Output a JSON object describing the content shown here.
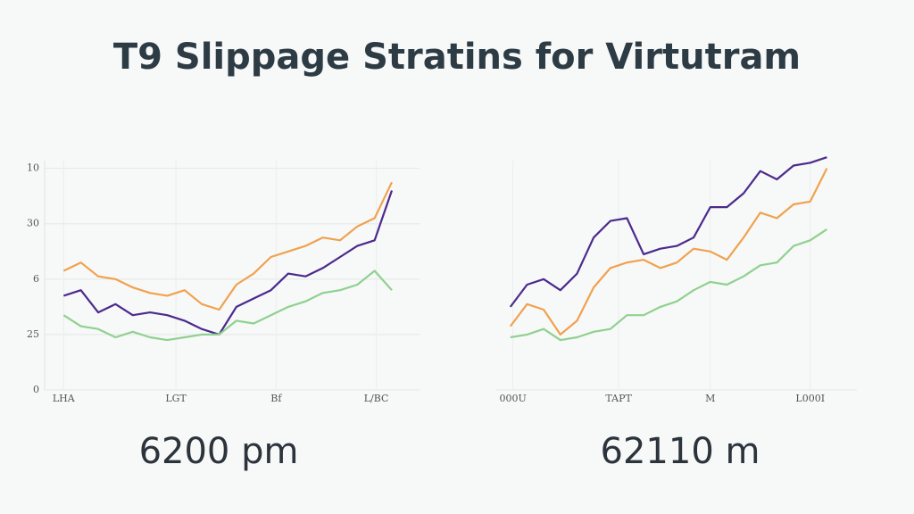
{
  "title": "T9 Slippage Stratins for Virtutram",
  "chart_data": [
    {
      "type": "line",
      "caption": "6200 pm",
      "x": [
        0,
        1,
        2,
        3,
        4,
        5,
        6,
        7,
        8,
        9,
        10,
        11,
        12,
        13,
        14,
        15,
        16,
        17,
        18,
        19
      ],
      "xlim": [
        -1.1,
        20.6
      ],
      "xticks": [
        {
          "value": 0,
          "label": "LHA"
        },
        {
          "value": 6.5,
          "label": "LGT"
        },
        {
          "value": 12.3,
          "label": "Bf"
        },
        {
          "value": 18.1,
          "label": "L/BC"
        }
      ],
      "ylim": [
        0,
        4.3
      ],
      "yticks": [
        {
          "value": 0,
          "label": "0"
        },
        {
          "value": 1,
          "label": "25"
        },
        {
          "value": 2,
          "label": "6"
        },
        {
          "value": 3,
          "label": "30"
        },
        {
          "value": 4,
          "label": "10"
        }
      ],
      "grid": true,
      "series": [
        {
          "color": "#f0a24e",
          "values": [
            2.15,
            2.3,
            2.05,
            2.0,
            1.85,
            1.75,
            1.7,
            1.8,
            1.55,
            1.45,
            1.9,
            2.1,
            2.4,
            2.5,
            2.6,
            2.75,
            2.7,
            2.95,
            3.1,
            3.75
          ]
        },
        {
          "color": "#4b2a8c",
          "values": [
            1.7,
            1.8,
            1.4,
            1.55,
            1.35,
            1.4,
            1.35,
            1.25,
            1.1,
            1.0,
            1.5,
            1.65,
            1.8,
            2.1,
            2.05,
            2.2,
            2.4,
            2.6,
            2.7,
            3.6
          ]
        },
        {
          "color": "#8fd18f",
          "values": [
            1.35,
            1.15,
            1.1,
            0.95,
            1.05,
            0.95,
            0.9,
            0.95,
            1.0,
            1.0,
            1.25,
            1.2,
            1.35,
            1.5,
            1.6,
            1.75,
            1.8,
            1.9,
            2.15,
            1.8
          ]
        }
      ]
    },
    {
      "type": "line",
      "caption": "62110 m",
      "x": [
        0,
        1,
        2,
        3,
        4,
        5,
        6,
        7,
        8,
        9,
        10,
        11,
        12,
        13,
        14,
        15,
        16,
        17,
        18,
        19
      ],
      "xlim": [
        -0.9,
        20.8
      ],
      "xticks": [
        {
          "value": 0.15,
          "label": "000U"
        },
        {
          "value": 6.5,
          "label": "TAPT"
        },
        {
          "value": 12,
          "label": "M"
        },
        {
          "value": 18,
          "label": "L000I"
        }
      ],
      "ylim": [
        0,
        4.3
      ],
      "grid": true,
      "series": [
        {
          "color": "#4b2a8c",
          "values": [
            1.5,
            1.9,
            2.0,
            1.8,
            2.1,
            2.75,
            3.05,
            3.1,
            2.45,
            2.55,
            2.6,
            2.75,
            3.3,
            3.3,
            3.55,
            3.95,
            3.8,
            4.05,
            4.1,
            4.2
          ]
        },
        {
          "color": "#f0a24e",
          "values": [
            1.15,
            1.55,
            1.45,
            1.0,
            1.25,
            1.85,
            2.2,
            2.3,
            2.35,
            2.2,
            2.3,
            2.55,
            2.5,
            2.35,
            2.75,
            3.2,
            3.1,
            3.35,
            3.4,
            4.0
          ]
        },
        {
          "color": "#8fd18f",
          "values": [
            0.95,
            1.0,
            1.1,
            0.9,
            0.95,
            1.05,
            1.1,
            1.35,
            1.35,
            1.5,
            1.6,
            1.8,
            1.95,
            1.9,
            2.05,
            2.25,
            2.3,
            2.6,
            2.7,
            2.9
          ]
        }
      ]
    }
  ]
}
